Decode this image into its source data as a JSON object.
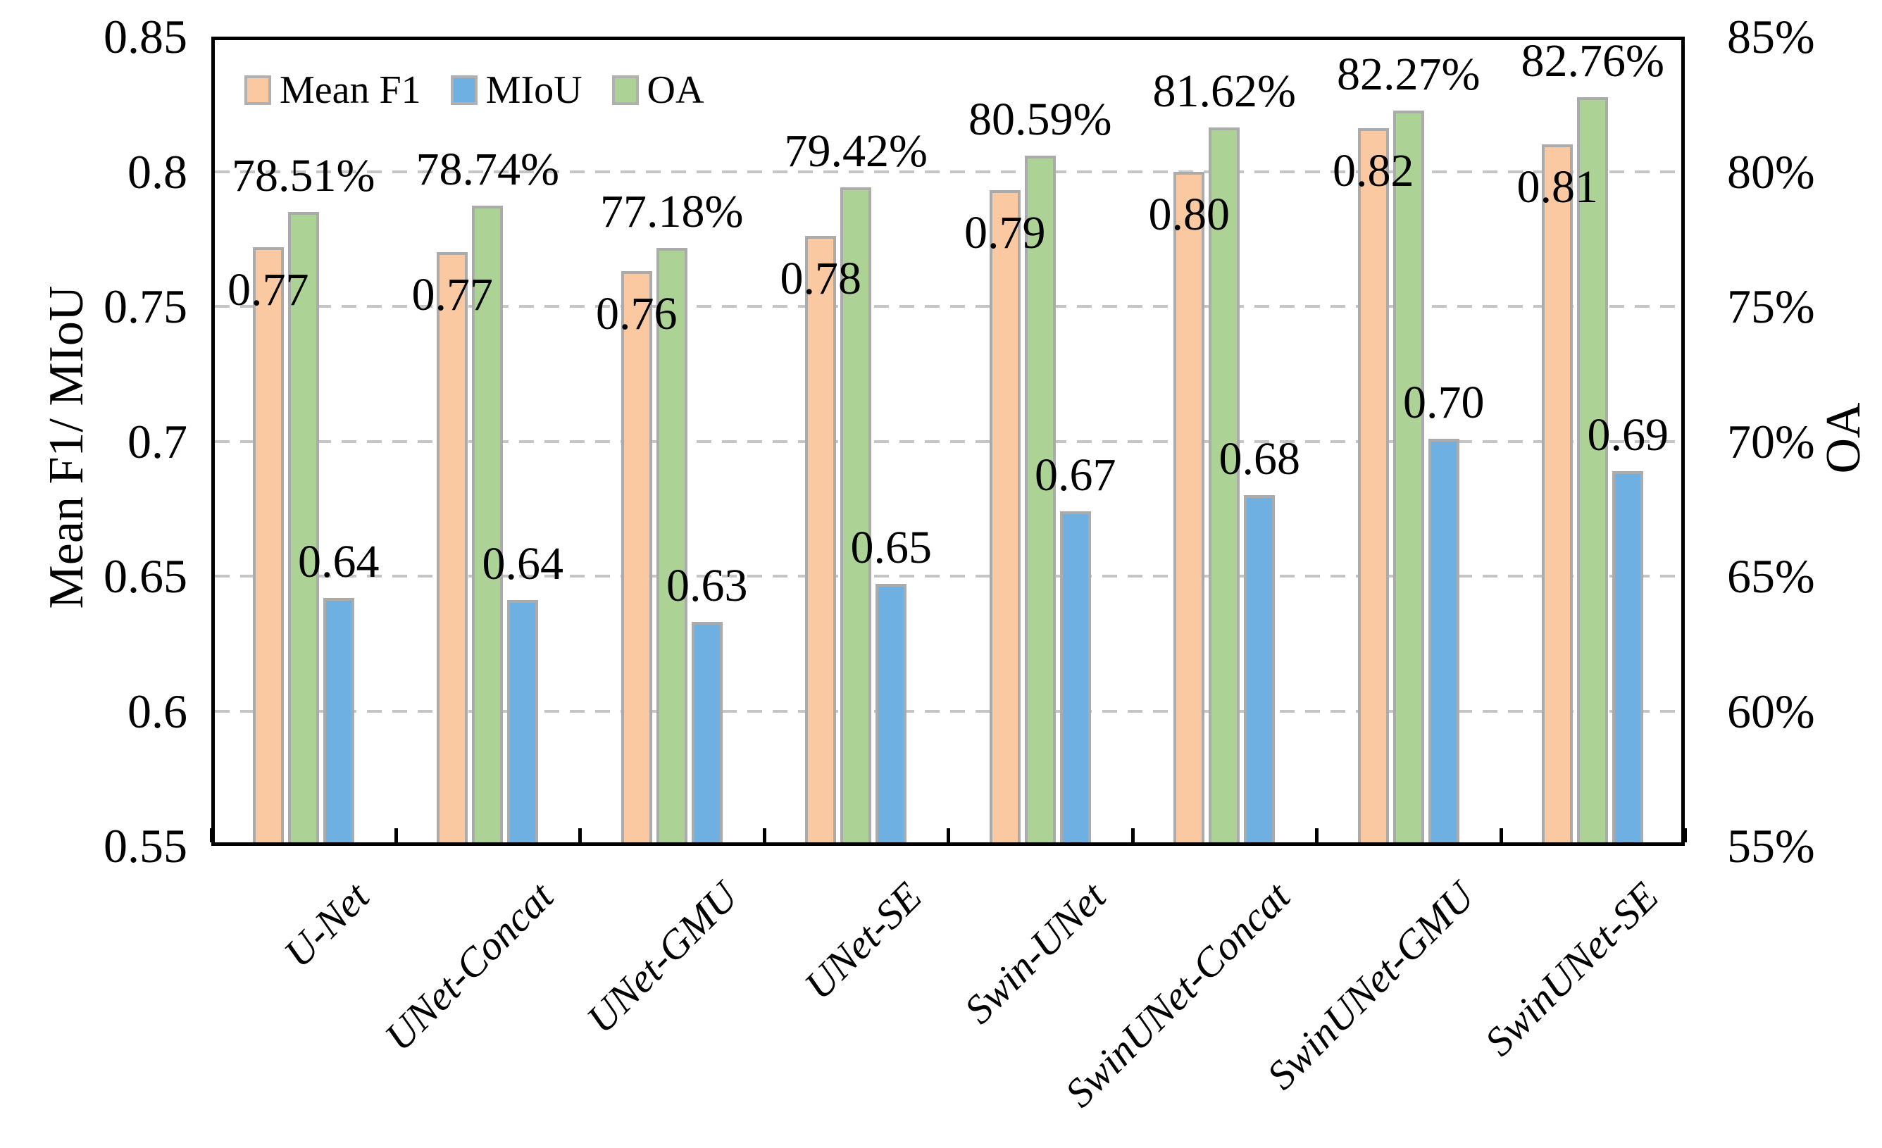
{
  "figure": {
    "left_axis_title": "Mean F1/ MIoU",
    "right_axis_title": "OA",
    "legend": {
      "items": [
        {
          "label": "Mean F1",
          "color": "#FAC9A2"
        },
        {
          "label": "MIoU",
          "color": "#6FB0E2"
        },
        {
          "label": "OA",
          "color": "#ACD395"
        }
      ]
    }
  },
  "chart_data": {
    "type": "bar",
    "title": "",
    "categories": [
      "U-Net",
      "UNet-Concat",
      "UNet-GMU",
      "UNet-SE",
      "Swin-UNet",
      "SwinUNet-Concat",
      "SwinUNet-GMU",
      "SwinUNet-SE"
    ],
    "series": [
      {
        "name": "Mean F1",
        "axis": "left",
        "color": "#FAC9A2",
        "border_color": "#ABABAB",
        "label_position": "inside-end",
        "values": [
          0.772,
          0.77,
          0.763,
          0.776,
          0.793,
          0.8,
          0.816,
          0.81
        ],
        "labels": [
          "0.77",
          "0.77",
          "0.76",
          "0.78",
          "0.79",
          "0.80",
          "0.82",
          "0.81"
        ]
      },
      {
        "name": "OA",
        "axis": "right",
        "color": "#ACD395",
        "border_color": "#ABABAB",
        "label_position": "outside-end",
        "values_percent": [
          78.51,
          78.74,
          77.18,
          79.42,
          80.59,
          81.62,
          82.27,
          82.76
        ],
        "labels": [
          "78.51%",
          "78.74%",
          "77.18%",
          "79.42%",
          "80.59%",
          "81.62%",
          "82.27%",
          "82.76%"
        ]
      },
      {
        "name": "MIoU",
        "axis": "left",
        "color": "#6FB0E2",
        "border_color": "#ABABAB",
        "label_position": "outside-end",
        "values": [
          0.642,
          0.641,
          0.633,
          0.647,
          0.674,
          0.68,
          0.701,
          0.689
        ],
        "labels": [
          "0.64",
          "0.64",
          "0.63",
          "0.65",
          "0.67",
          "0.68",
          "0.70",
          "0.69"
        ]
      }
    ],
    "left_axis": {
      "label": "Mean F1/ MIoU",
      "ylim": [
        0.55,
        0.85
      ],
      "tick_step": 0.05,
      "tick_labels": [
        "0.85",
        "0.8",
        "0.75",
        "0.7",
        "0.65",
        "0.6",
        "0.55"
      ]
    },
    "right_axis": {
      "label": "OA",
      "ylim_percent": [
        55,
        85
      ],
      "tick_step_percent": 5,
      "tick_labels": [
        "85%",
        "80%",
        "75%",
        "70%",
        "65%",
        "60%",
        "55%"
      ]
    },
    "gridlines": {
      "values": [
        0.8,
        0.75,
        0.7,
        0.65,
        0.6
      ],
      "style": "dashed",
      "color": "#C5C5C5"
    },
    "legend_position": "top-left-inside",
    "bar_order_in_group": [
      "Mean F1",
      "OA",
      "MIoU"
    ],
    "grid": "horizontal-only"
  }
}
